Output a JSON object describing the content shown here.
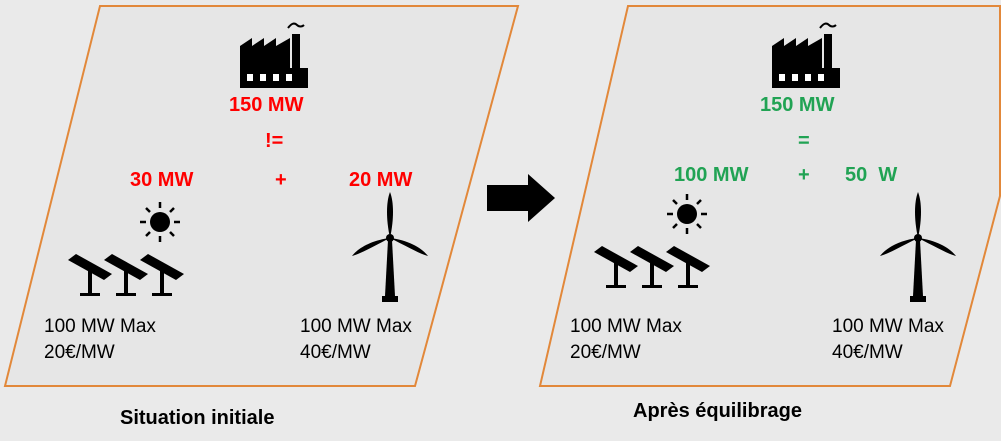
{
  "colors": {
    "frame": "#e2883a",
    "panel": "#e6e6e6",
    "alert": "#ff0000",
    "ok": "#21a354",
    "ink": "#000000"
  },
  "left_panel": {
    "caption": "Situation initiale",
    "factory_output": "150 MW",
    "operator": "!=",
    "solar_output": "30 MW",
    "plus": "+",
    "wind_output": "20 MW",
    "solar_capacity": "100 MW Max",
    "solar_price": "20€/MW",
    "wind_capacity": "100 MW Max",
    "wind_price": "40€/MW"
  },
  "right_panel": {
    "caption": "Après équilibrage",
    "factory_output": "150 MW",
    "operator": "=",
    "solar_output": "100 MW",
    "plus": "+",
    "wind_output": "50  W",
    "solar_capacity": "100 MW Max",
    "solar_price": "20€/MW",
    "wind_capacity": "100 MW Max",
    "wind_price": "40€/MW"
  },
  "icons": [
    "factory-icon",
    "sun-icon",
    "solar-panel-icon",
    "wind-turbine-icon",
    "arrow-right-icon"
  ]
}
